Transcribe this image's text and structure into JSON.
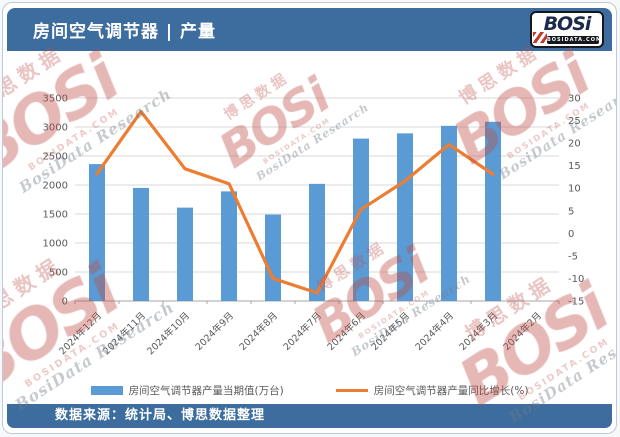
{
  "header": {
    "title": "房间空气调节器 | 产量"
  },
  "logo": {
    "brand": "BOSi",
    "domain": "BOSIDATA.COM"
  },
  "footer": {
    "source": "数据来源：统计局、博思数据整理"
  },
  "watermark": {
    "brand": "BOSi",
    "domain": "BOSIDATA.COM",
    "cn": "博思数据",
    "en": "BosiData Research"
  },
  "colors": {
    "header_bg": "#3D6D9E",
    "bar": "#5B9BD5",
    "line": "#ED7D31",
    "grid": "#D9D9D9",
    "axis": "#A6A6A6",
    "tick_text": "#595959"
  },
  "chart_data": {
    "type": "bar+line",
    "title": "房间空气调节器 | 产量",
    "categories": [
      "2024年12月",
      "2024年11月",
      "2024年10月",
      "2024年9月",
      "2024年8月",
      "2024年7月",
      "2024年6月",
      "2024年5月",
      "2024年4月",
      "2024年3月",
      "2024年2月"
    ],
    "series": [
      {
        "name": "房间空气调节器产量当期值(万台)",
        "type": "bar",
        "axis": "left",
        "color": "#5B9BD5",
        "values": [
          2360,
          1950,
          1610,
          1890,
          1490,
          2020,
          2800,
          2890,
          3020,
          3090,
          null
        ]
      },
      {
        "name": "房间空气调节器产量同比增长(%)",
        "type": "line",
        "axis": "right",
        "color": "#ED7D31",
        "values": [
          13.2,
          27.0,
          14.3,
          11.0,
          -10.0,
          -13.2,
          5.3,
          11.6,
          19.7,
          13.1,
          null
        ]
      }
    ],
    "left_axis": {
      "min": 0,
      "max": 3500,
      "ticks": [
        0,
        500,
        1000,
        1500,
        2000,
        2500,
        3000,
        3500
      ]
    },
    "right_axis": {
      "min": -15,
      "max": 30,
      "ticks": [
        30,
        25,
        20,
        15,
        10,
        5,
        0,
        -5,
        -10,
        -15
      ]
    },
    "grid": true,
    "legend_position": "bottom"
  }
}
